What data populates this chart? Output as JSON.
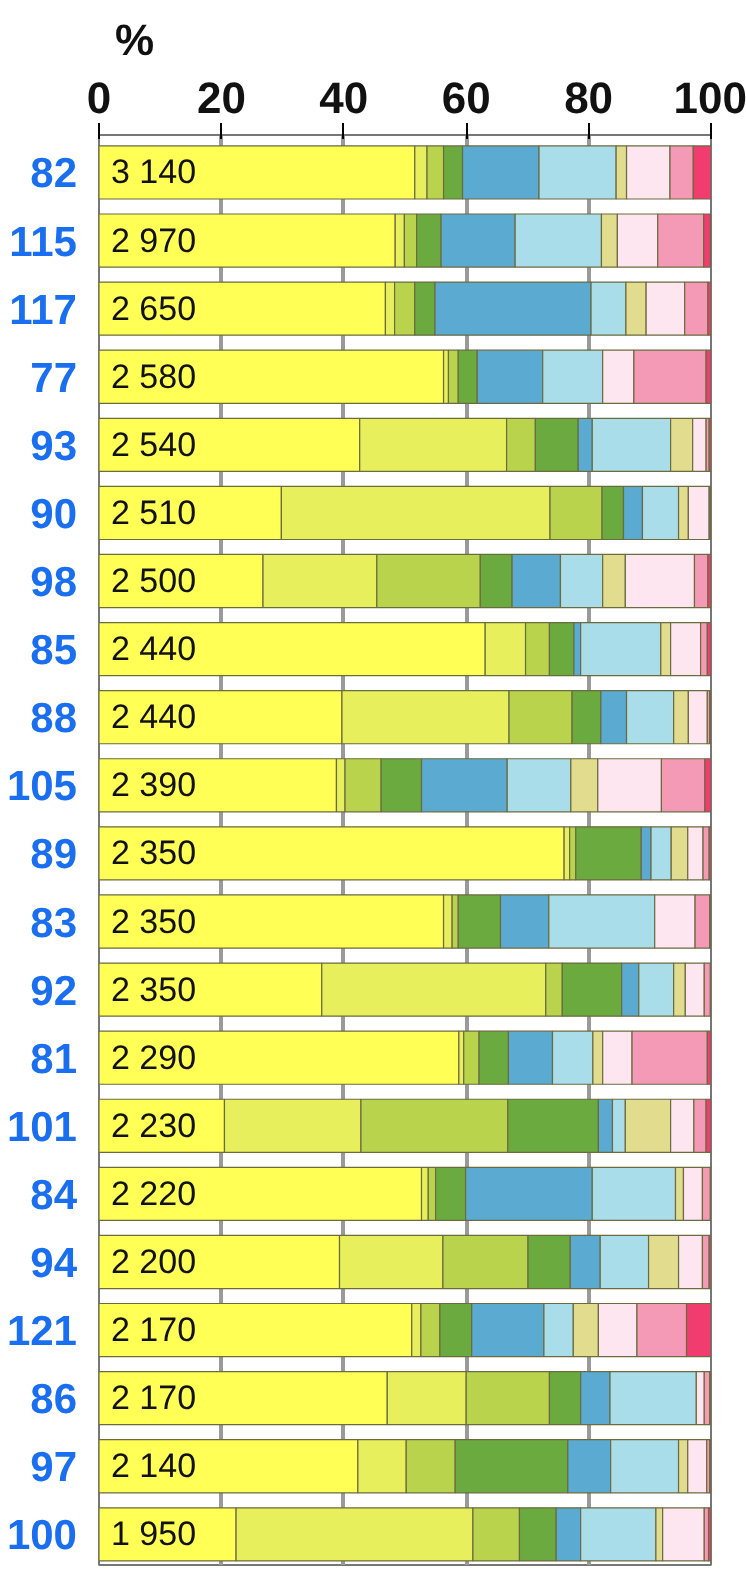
{
  "chart_data": {
    "type": "bar",
    "orientation": "horizontal",
    "stacked": true,
    "xlabel": "%",
    "categories": [
      "82",
      "115",
      "117",
      "77",
      "93",
      "90",
      "98",
      "85",
      "88",
      "105",
      "89",
      "83",
      "92",
      "81",
      "101",
      "84",
      "94",
      "121",
      "86",
      "97",
      "100"
    ],
    "xlim": [
      0,
      100
    ],
    "xticks": [
      0,
      20,
      40,
      60,
      80,
      100
    ],
    "grid": "x",
    "series": [
      {
        "color": "#ffff55",
        "values": [
          51.6,
          48.4,
          46.8,
          56.3,
          42.6,
          29.8,
          26.8,
          63.1,
          39.7,
          38.8,
          76.0,
          56.3,
          36.4,
          58.8,
          20.5,
          52.7,
          39.3,
          51.1,
          47.1,
          42.3,
          22.4
        ]
      },
      {
        "color": "#e8ef5c",
        "values": [
          2.0,
          1.5,
          1.5,
          0.8,
          24.0,
          43.9,
          18.6,
          6.6,
          27.3,
          1.4,
          0.9,
          1.4,
          36.6,
          0.8,
          22.3,
          1.1,
          16.9,
          1.5,
          12.9,
          7.9,
          38.7
        ]
      },
      {
        "color": "#b9d44c",
        "values": [
          2.7,
          2.0,
          3.3,
          1.6,
          4.7,
          8.5,
          16.9,
          3.9,
          10.3,
          5.9,
          1.0,
          1.0,
          2.7,
          2.5,
          24.0,
          1.2,
          13.9,
          3.1,
          13.6,
          8.0,
          7.6
        ]
      },
      {
        "color": "#6aaa3e",
        "values": [
          3.1,
          4.0,
          3.3,
          3.1,
          7.0,
          3.5,
          5.2,
          4.0,
          4.7,
          6.6,
          10.7,
          6.9,
          9.7,
          4.8,
          14.8,
          4.9,
          6.9,
          5.2,
          5.1,
          18.4,
          6.0
        ]
      },
      {
        "color": "#5aaad2",
        "values": [
          12.5,
          12.1,
          25.5,
          10.7,
          2.3,
          3.1,
          7.9,
          1.1,
          4.2,
          14.0,
          1.6,
          7.9,
          2.8,
          7.2,
          2.3,
          20.7,
          4.9,
          11.8,
          4.8,
          7.0,
          4.0
        ]
      },
      {
        "color": "#a9dde9",
        "values": [
          12.6,
          14.1,
          5.7,
          9.8,
          12.8,
          5.9,
          6.9,
          13.1,
          7.7,
          10.4,
          3.3,
          17.3,
          5.7,
          6.6,
          2.1,
          13.6,
          7.9,
          4.8,
          14.1,
          11.1,
          12.3
        ]
      },
      {
        "color": "#e2dd8e",
        "values": [
          1.7,
          2.6,
          3.3,
          0,
          3.6,
          1.6,
          3.7,
          1.6,
          2.4,
          4.4,
          2.7,
          0,
          1.9,
          1.6,
          7.4,
          1.3,
          4.9,
          4.1,
          0,
          1.5,
          1.1
        ]
      },
      {
        "color": "#fde6ef",
        "values": [
          7.1,
          6.6,
          6.3,
          5.1,
          2.2,
          3.4,
          11.3,
          4.9,
          3.1,
          10.4,
          2.5,
          6.6,
          3.1,
          4.8,
          3.8,
          3.1,
          3.9,
          6.3,
          1.3,
          3.1,
          6.8
        ]
      },
      {
        "color": "#f59ab6",
        "values": [
          3.8,
          7.5,
          3.8,
          11.8,
          0.5,
          0.2,
          2.2,
          1.1,
          0.4,
          7.1,
          1.0,
          2.4,
          1.0,
          12.3,
          2.0,
          1.3,
          1.1,
          8.1,
          0.9,
          0.5,
          0.7
        ]
      },
      {
        "color": "#f03c6e",
        "values": [
          2.9,
          1.1,
          0.5,
          0.8,
          0.3,
          0,
          0.5,
          0.6,
          0.2,
          1.0,
          0.3,
          0.2,
          0.1,
          0.6,
          0.8,
          0.1,
          0.4,
          4.0,
          0.2,
          0.2,
          0.4
        ]
      }
    ],
    "annotations": [
      {
        "text": "3 140",
        "y": "82"
      },
      {
        "text": "2 970",
        "y": "115"
      },
      {
        "text": "2 650",
        "y": "117"
      },
      {
        "text": "2 580",
        "y": "77"
      },
      {
        "text": "2 540",
        "y": "93"
      },
      {
        "text": "2 510",
        "y": "90"
      },
      {
        "text": "2 500",
        "y": "98"
      },
      {
        "text": "2 440",
        "y": "85"
      },
      {
        "text": "2 440",
        "y": "88"
      },
      {
        "text": "2 390",
        "y": "105"
      },
      {
        "text": "2 350",
        "y": "89"
      },
      {
        "text": "2 350",
        "y": "83"
      },
      {
        "text": "2 350",
        "y": "92"
      },
      {
        "text": "2 290",
        "y": "81"
      },
      {
        "text": "2 230",
        "y": "101"
      },
      {
        "text": "2 220",
        "y": "84"
      },
      {
        "text": "2 200",
        "y": "94"
      },
      {
        "text": "2 170",
        "y": "121"
      },
      {
        "text": "2 170",
        "y": "86"
      },
      {
        "text": "2 140",
        "y": "97"
      },
      {
        "text": "1 950",
        "y": "100"
      }
    ]
  }
}
